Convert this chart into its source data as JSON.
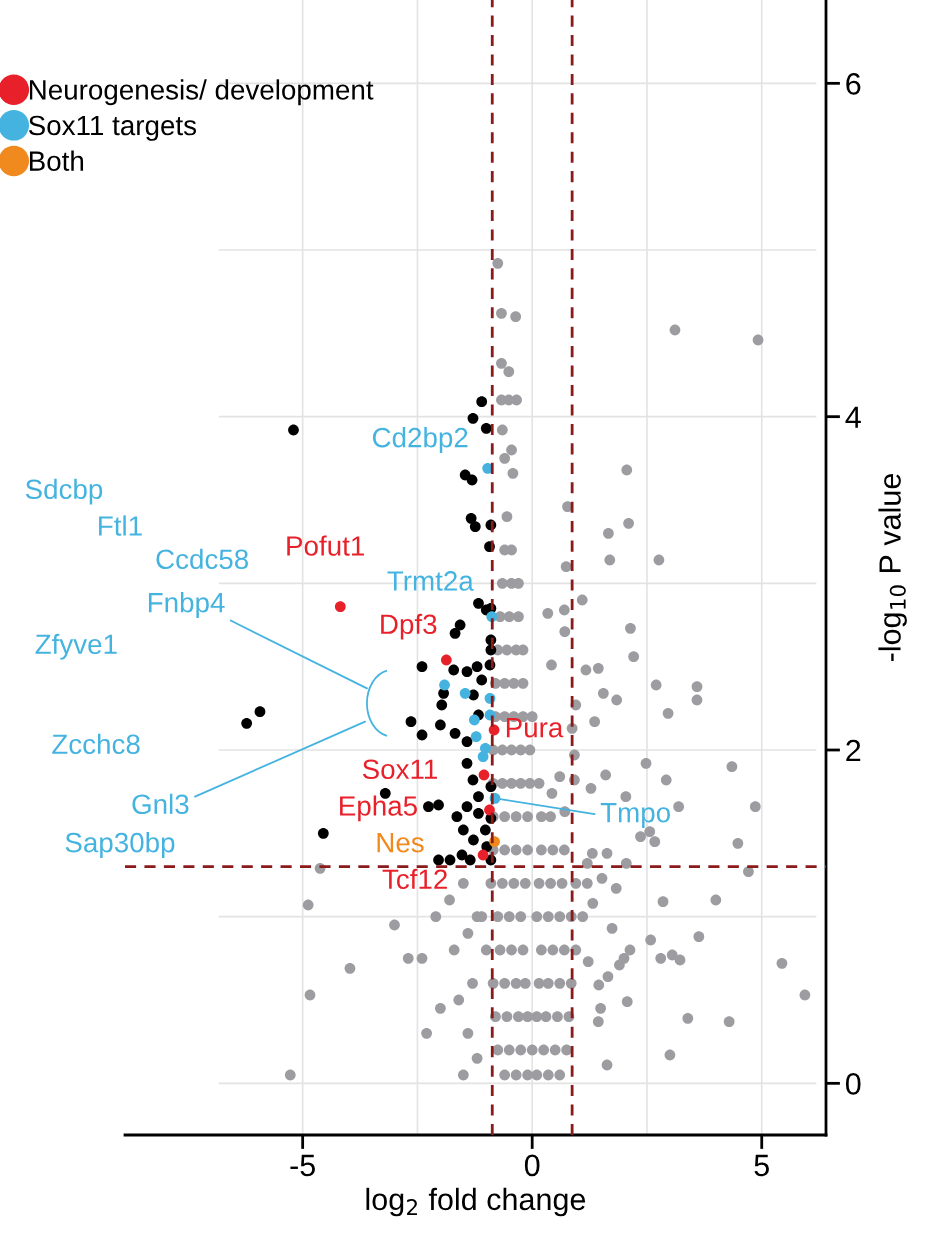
{
  "chart_data": {
    "type": "scatter",
    "xlabel": "log$_{2}$ fold change",
    "ylabel": "-log$_{10}$ P value",
    "xlim": [
      -8.87,
      6.4
    ],
    "ylim": [
      -0.31,
      6.5
    ],
    "xticks": [
      -5,
      0,
      5
    ],
    "yticks": [
      0,
      2,
      4,
      6
    ],
    "grid": true,
    "legend": "top left",
    "marker": "circle",
    "ref_lines": [
      {
        "axis": "y",
        "value": 1.3,
        "color": "#8b1a1a",
        "line_style": "dashed"
      },
      {
        "axis": "x",
        "value": -0.87,
        "color": "#8b1a1a",
        "line_style": "dashed"
      },
      {
        "axis": "x",
        "value": 0.87,
        "color": "#8b1a1a",
        "line_style": "dashed"
      }
    ],
    "series": [
      {
        "color": "#9d9da1",
        "x": [
          3.11,
          4.92,
          2.06,
          2.1,
          1.66,
          1.69,
          2.76,
          0.77,
          0.74,
          1.09,
          0.34,
          0.7,
          0.71,
          2.14,
          2.21,
          0.42,
          1.17,
          1.44,
          1.55,
          1.84,
          2.7,
          3.59,
          3.59,
          2.96,
          1.36,
          0.95,
          2.48,
          2.92,
          4.35,
          4.86,
          3.19,
          1.6,
          2.04,
          1.28,
          2.56,
          2.67,
          2.36,
          4.48,
          4.71,
          4.0,
          2.85,
          3.63,
          2.58,
          2.8,
          3.05,
          3.22,
          5.44,
          5.94,
          3.39,
          4.29,
          3.0,
          1.63,
          2.07,
          2.13,
          2.0,
          1.9,
          1.65,
          1.45,
          1.49,
          1.44,
          1.22,
          1.74,
          1.83,
          1.52,
          1.32,
          1.2,
          2.05,
          1.63,
          1.31,
          0.71,
          0.6,
          0.43,
          0.92,
          0.92,
          0.87,
          -0.75,
          -0.67,
          -0.36,
          -0.67,
          -0.51,
          -0.67,
          -0.51,
          -0.34,
          -0.65,
          -0.45,
          -0.42,
          -0.6,
          -0.55,
          -0.6,
          -0.45,
          -0.65,
          -0.45,
          -0.3,
          -0.7,
          -0.5,
          -0.3,
          -0.75,
          -0.55,
          -0.35,
          -0.2,
          -0.8,
          -0.6,
          -0.4,
          -0.2,
          -0.8,
          -0.6,
          -0.4,
          -0.2,
          0.0,
          -0.85,
          -0.65,
          -0.45,
          -0.25,
          -0.05,
          -0.85,
          -0.65,
          -0.45,
          -0.25,
          -0.05,
          0.15,
          -0.85,
          -0.6,
          -0.35,
          -0.1,
          0.2,
          0.4,
          -0.85,
          -0.6,
          -0.35,
          -0.1,
          0.2,
          0.45,
          0.7,
          -0.9,
          -0.65,
          -0.4,
          -0.15,
          0.15,
          0.4,
          0.65,
          0.95,
          1.2,
          -1.1,
          -0.75,
          -0.5,
          -0.25,
          0.1,
          0.35,
          0.6,
          0.85,
          1.1,
          -1.0,
          -0.7,
          -0.45,
          -0.2,
          0.2,
          0.45,
          0.7,
          0.95,
          -0.85,
          -0.6,
          -0.35,
          -0.15,
          0.15,
          0.35,
          0.6,
          0.85,
          -0.8,
          -0.55,
          -0.3,
          -0.1,
          0.1,
          0.3,
          0.55,
          0.8,
          -0.75,
          -0.5,
          -0.25,
          0.0,
          0.25,
          0.5,
          0.75,
          -0.6,
          -0.35,
          -0.1,
          0.1,
          0.35,
          0.6,
          -1.5,
          -1.8,
          -2.1,
          -1.4,
          -1.7,
          -2.4,
          -1.3,
          -1.6,
          -2.0,
          -2.3,
          -1.4,
          -1.2,
          -1.5,
          -2.7,
          -3.0,
          -3.97,
          -4.62,
          -4.88,
          -4.84,
          -5.27,
          -1.2
        ],
        "values": [
          4.52,
          4.46,
          3.68,
          3.36,
          3.3,
          3.14,
          3.14,
          3.46,
          3.1,
          2.9,
          2.82,
          2.84,
          2.71,
          2.73,
          2.56,
          2.51,
          2.48,
          2.49,
          2.34,
          2.3,
          2.39,
          2.38,
          2.3,
          2.22,
          2.17,
          2.27,
          1.92,
          1.82,
          1.9,
          1.66,
          1.66,
          1.85,
          1.72,
          1.77,
          1.51,
          1.45,
          1.48,
          1.44,
          1.27,
          1.1,
          1.09,
          0.88,
          0.86,
          0.75,
          0.77,
          0.74,
          0.72,
          0.53,
          0.39,
          0.37,
          0.17,
          0.11,
          0.49,
          0.8,
          0.75,
          0.71,
          0.64,
          0.59,
          0.45,
          0.37,
          0.73,
          0.93,
          1.17,
          1.23,
          1.08,
          1.32,
          1.32,
          1.38,
          1.38,
          1.63,
          1.84,
          1.74,
          1.82,
          1.97,
          2.13,
          4.92,
          4.62,
          4.6,
          4.32,
          4.27,
          4.1,
          4.1,
          4.1,
          3.92,
          3.8,
          3.66,
          3.75,
          3.4,
          3.2,
          3.2,
          3.0,
          3.0,
          3.0,
          2.8,
          2.8,
          2.8,
          2.6,
          2.6,
          2.6,
          2.6,
          2.4,
          2.4,
          2.4,
          2.4,
          2.2,
          2.2,
          2.2,
          2.2,
          2.2,
          2.0,
          2.0,
          2.0,
          2.0,
          2.0,
          1.8,
          1.8,
          1.8,
          1.8,
          1.8,
          1.8,
          1.6,
          1.6,
          1.6,
          1.6,
          1.6,
          1.6,
          1.4,
          1.4,
          1.4,
          1.4,
          1.4,
          1.4,
          1.4,
          1.2,
          1.2,
          1.2,
          1.2,
          1.2,
          1.2,
          1.2,
          1.2,
          1.2,
          1.0,
          1.0,
          1.0,
          1.0,
          1.0,
          1.0,
          1.0,
          1.0,
          1.0,
          0.8,
          0.8,
          0.8,
          0.8,
          0.8,
          0.8,
          0.8,
          0.8,
          0.6,
          0.6,
          0.6,
          0.6,
          0.6,
          0.6,
          0.6,
          0.6,
          0.4,
          0.4,
          0.4,
          0.4,
          0.4,
          0.4,
          0.4,
          0.4,
          0.2,
          0.2,
          0.2,
          0.2,
          0.2,
          0.2,
          0.2,
          0.05,
          0.05,
          0.05,
          0.05,
          0.05,
          0.05,
          1.2,
          1.1,
          1.0,
          0.9,
          0.8,
          0.75,
          0.6,
          0.5,
          0.45,
          0.3,
          0.3,
          0.15,
          0.05,
          0.75,
          0.95,
          0.69,
          1.29,
          1.07,
          0.53,
          0.05,
          1.0
        ]
      },
      {
        "color": "#000000",
        "x": [
          -5.2,
          -1.1,
          -1.29,
          -1.0,
          -1.46,
          -1.31,
          -1.33,
          -1.24,
          -0.9,
          -0.93,
          -1.17,
          -1.0,
          -0.9,
          -1.57,
          -1.68,
          -2.4,
          -1.71,
          -1.42,
          -1.2,
          -0.92,
          -1.1,
          -0.9,
          -0.9,
          -1.93,
          -1.28,
          -1.97,
          -2.64,
          -2.0,
          -2.4,
          -1.68,
          -1.42,
          -1.17,
          -5.93,
          -6.22,
          -1.42,
          -1.29,
          -3.2,
          -2.26,
          -2.04,
          -1.64,
          -1.42,
          -1.17,
          -1.5,
          -1.17,
          -1.02,
          -1.28,
          -4.55,
          -2.04,
          -1.79,
          -1.53,
          -0.9,
          -1.35,
          -0.9,
          -0.99,
          -0.9
        ],
        "values": [
          3.92,
          4.09,
          3.99,
          3.93,
          3.65,
          3.62,
          3.39,
          3.34,
          3.35,
          3.22,
          2.88,
          2.84,
          2.85,
          2.75,
          2.7,
          2.5,
          2.48,
          2.47,
          2.5,
          2.51,
          2.42,
          2.66,
          2.6,
          2.34,
          2.33,
          2.27,
          2.17,
          2.15,
          2.09,
          2.1,
          2.05,
          2.21,
          2.23,
          2.16,
          1.92,
          1.82,
          1.74,
          1.66,
          1.67,
          1.6,
          1.66,
          1.72,
          1.52,
          1.62,
          1.52,
          1.46,
          1.5,
          1.34,
          1.34,
          1.37,
          1.34,
          1.34,
          1.78,
          1.42,
          1.59
        ]
      },
      {
        "name": "Neurogenesis/ development",
        "color": "#e8202a",
        "x": [
          -4.18,
          -1.87,
          -0.83,
          -1.05,
          -0.93,
          -1.07
        ],
        "values": [
          2.86,
          2.54,
          2.12,
          1.85,
          1.64,
          1.37
        ]
      },
      {
        "name": "Sox11 targets",
        "color": "#45b3e0",
        "x": [
          -0.97,
          -0.88,
          -1.91,
          -1.46,
          -0.92,
          -0.92,
          -1.26,
          -1.22,
          -1.02,
          -1.07,
          -0.81
        ],
        "values": [
          3.69,
          2.8,
          2.39,
          2.34,
          2.31,
          2.21,
          2.18,
          2.08,
          2.01,
          1.96,
          1.71
        ]
      },
      {
        "name": "Both",
        "color": "#f08a1e",
        "x": [
          -0.82
        ],
        "values": [
          1.45
        ]
      }
    ],
    "annotations": [
      {
        "text": "Cd2bp2",
        "x": -0.97,
        "y": 3.69
      },
      {
        "text": "Trmt2a",
        "x": -0.88,
        "y": 2.8
      },
      "Sdcbp",
      "Ftl1",
      "Ccdc58",
      "Fnbp4",
      "Zfyve1",
      "Zcchc8",
      "Gnl3",
      "Sap30bp",
      {
        "text": "Tmpo",
        "x": -0.81,
        "y": 1.71
      },
      {
        "text": "Pofut1",
        "x": -4.18,
        "y": 2.86
      },
      {
        "text": "Dpf3",
        "x": -1.87,
        "y": 2.54
      },
      {
        "text": "Pura",
        "x": -0.83,
        "y": 2.12
      },
      {
        "text": "Sox11",
        "x": -1.05,
        "y": 1.85
      },
      {
        "text": "Epha5",
        "x": -0.93,
        "y": 1.64
      },
      {
        "text": "Tcf12",
        "x": -1.07,
        "y": 1.37
      },
      {
        "text": "Nes",
        "x": -0.82,
        "y": 1.45
      }
    ]
  }
}
